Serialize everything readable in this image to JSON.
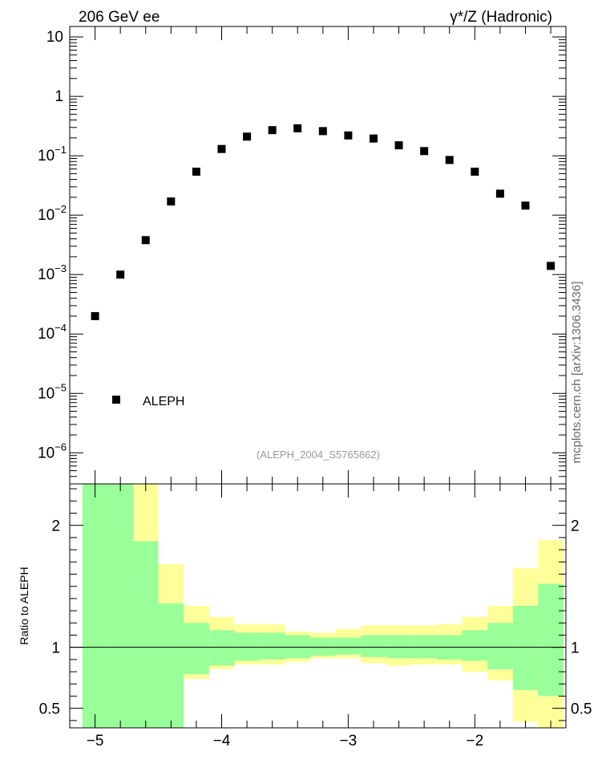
{
  "header": {
    "left_label": "206 GeV ee",
    "right_label": "γ*/Z (Hadronic)"
  },
  "watermark": "mcplots.cern.ch [arXiv:1306.3436]",
  "analysis_label": "(ALEPH_2004_S5765862)",
  "colors": {
    "marker": "#000000",
    "band_inner": "#99ff99",
    "band_outer": "#ffff99",
    "analysis_label": "#999999",
    "watermark": "#666666"
  },
  "chart_data": [
    {
      "type": "scatter",
      "log_y": true,
      "xlim": [
        -5.2,
        -1.28
      ],
      "ylim": [
        3e-07,
        15
      ],
      "y_tick_labels": [
        "10",
        "1",
        "10^-1",
        "10^-2",
        "10^-3",
        "10^-4",
        "10^-5",
        "10^-6"
      ],
      "legend": {
        "position": "lower-left",
        "entries": [
          "ALEPH"
        ]
      },
      "series": [
        {
          "name": "ALEPH",
          "marker": "square",
          "x": [
            -5.0,
            -4.8,
            -4.6,
            -4.4,
            -4.2,
            -4.0,
            -3.8,
            -3.6,
            -3.4,
            -3.2,
            -3.0,
            -2.8,
            -2.6,
            -2.4,
            -2.2,
            -2.0,
            -1.8,
            -1.6,
            -1.4
          ],
          "y": [
            0.0002,
            0.001,
            0.0038,
            0.017,
            0.054,
            0.13,
            0.21,
            0.27,
            0.29,
            0.26,
            0.22,
            0.195,
            0.15,
            0.12,
            0.085,
            0.054,
            0.023,
            0.0145,
            0.0014
          ]
        }
      ]
    },
    {
      "type": "area",
      "ylabel": "Ratio to ALEPH",
      "xlim": [
        -5.2,
        -1.28
      ],
      "ylim": [
        0.34,
        2.34
      ],
      "x_tick_labels": [
        "−5",
        "−4",
        "−3",
        "−2"
      ],
      "y_tick_labels": [
        "2",
        "1",
        "0.5"
      ],
      "reference_line": 1,
      "bin_edges": [
        -5.1,
        -4.9,
        -4.7,
        -4.5,
        -4.3,
        -4.1,
        -3.9,
        -3.7,
        -3.5,
        -3.3,
        -3.1,
        -2.9,
        -2.7,
        -2.5,
        -2.3,
        -2.1,
        -1.9,
        -1.7,
        -1.5,
        -1.3
      ],
      "series": [
        {
          "name": "inner_band",
          "upper": [
            2.34,
            2.34,
            1.87,
            1.36,
            1.2,
            1.14,
            1.12,
            1.12,
            1.1,
            1.08,
            1.08,
            1.1,
            1.1,
            1.1,
            1.1,
            1.14,
            1.2,
            1.34,
            1.52
          ],
          "lower": [
            0.34,
            0.34,
            0.34,
            0.34,
            0.78,
            0.85,
            0.89,
            0.9,
            0.91,
            0.93,
            0.94,
            0.92,
            0.91,
            0.91,
            0.9,
            0.89,
            0.82,
            0.65,
            0.6
          ]
        },
        {
          "name": "outer_band",
          "upper": [
            2.34,
            2.34,
            2.34,
            1.68,
            1.34,
            1.25,
            1.19,
            1.19,
            1.13,
            1.12,
            1.15,
            1.18,
            1.18,
            1.18,
            1.19,
            1.25,
            1.34,
            1.65,
            1.88
          ],
          "lower": [
            0.34,
            0.34,
            0.34,
            0.73,
            0.74,
            0.82,
            0.86,
            0.86,
            0.88,
            0.91,
            0.91,
            0.87,
            0.85,
            0.86,
            0.86,
            0.8,
            0.73,
            0.39,
            0.34
          ]
        }
      ]
    }
  ]
}
